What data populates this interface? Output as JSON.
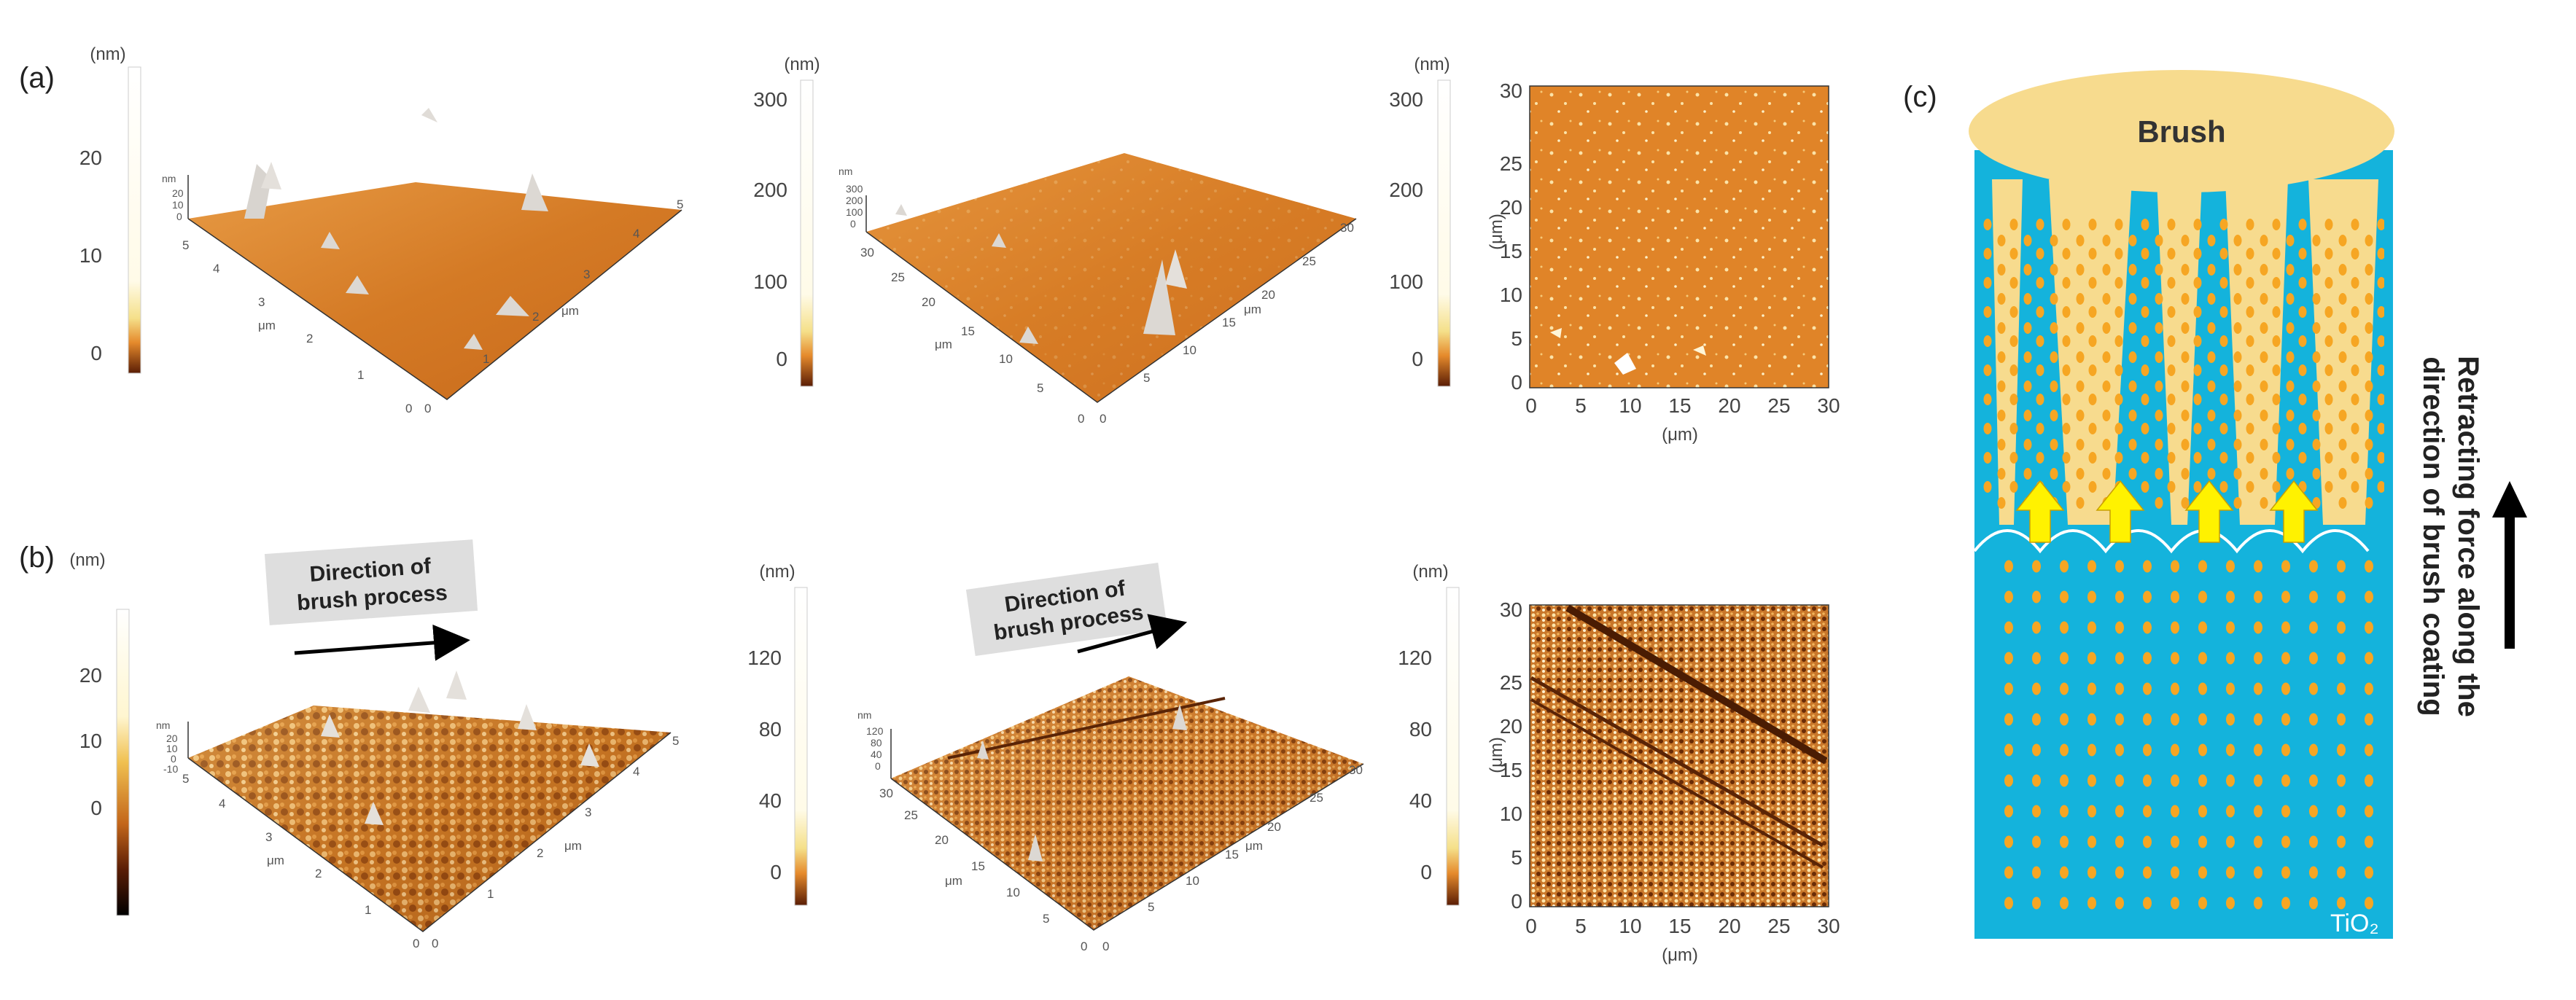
{
  "panels": {
    "a": "(a)",
    "b": "(b)",
    "c": "(c)"
  },
  "units": {
    "nm": "(nm)",
    "um": "(μm)",
    "nm_short": "nm",
    "um_short": "μm"
  },
  "row_a": {
    "left_colorbar": [
      "20",
      "10",
      "0"
    ],
    "left_stack": [
      "20",
      "10",
      "0"
    ],
    "left_x_ticks": [
      "0",
      "1",
      "2",
      "3",
      "4",
      "5"
    ],
    "left_y_ticks": [
      "0",
      "1",
      "2",
      "3",
      "4",
      "5"
    ],
    "mid_colorbar": [
      "300",
      "200",
      "100",
      "0"
    ],
    "mid_stack": [
      "300",
      "200",
      "100",
      "0"
    ],
    "mid_x_ticks": [
      "0",
      "5",
      "10",
      "15",
      "20",
      "25",
      "30"
    ],
    "mid_y_ticks": [
      "0",
      "5",
      "10",
      "15",
      "20",
      "25",
      "30"
    ],
    "right_colorbar": [
      "300",
      "200",
      "100",
      "0"
    ]
  },
  "row_b": {
    "direction_label_line1": "Direction of",
    "direction_label_line2": "brush process",
    "left_colorbar": [
      "20",
      "10",
      "0"
    ],
    "left_stack": [
      "20",
      "10",
      "0",
      "-10"
    ],
    "left_x_ticks": [
      "0",
      "1",
      "2",
      "3",
      "4",
      "5"
    ],
    "left_y_ticks": [
      "0",
      "1",
      "2",
      "3",
      "4",
      "5"
    ],
    "mid_colorbar": [
      "120",
      "80",
      "40",
      "0"
    ],
    "mid_stack": [
      "120",
      "80",
      "40",
      "0"
    ],
    "mid_x_ticks": [
      "0",
      "5",
      "10",
      "15",
      "20",
      "25",
      "30"
    ],
    "mid_y_ticks": [
      "0",
      "5",
      "10",
      "15",
      "20",
      "25",
      "30"
    ],
    "right_colorbar": [
      "120",
      "80",
      "40",
      "0"
    ]
  },
  "map_axis_ticks": [
    "0",
    "5",
    "10",
    "15",
    "20",
    "25",
    "30"
  ],
  "panel_c": {
    "brush_label": "Brush",
    "substrate_label": "TiO₂",
    "side_text_line1": "Retracting force along the",
    "side_text_line2": "direction of brush coating"
  },
  "colors": {
    "afm_orange": "#d9822b",
    "afm_dark": "#6b2d05",
    "afm_light": "#f6d79a",
    "tio2_blue": "#14b3dc",
    "brush_tan": "#f7db8e",
    "particle": "#f6a623",
    "arrow_yellow": "#fff200"
  }
}
